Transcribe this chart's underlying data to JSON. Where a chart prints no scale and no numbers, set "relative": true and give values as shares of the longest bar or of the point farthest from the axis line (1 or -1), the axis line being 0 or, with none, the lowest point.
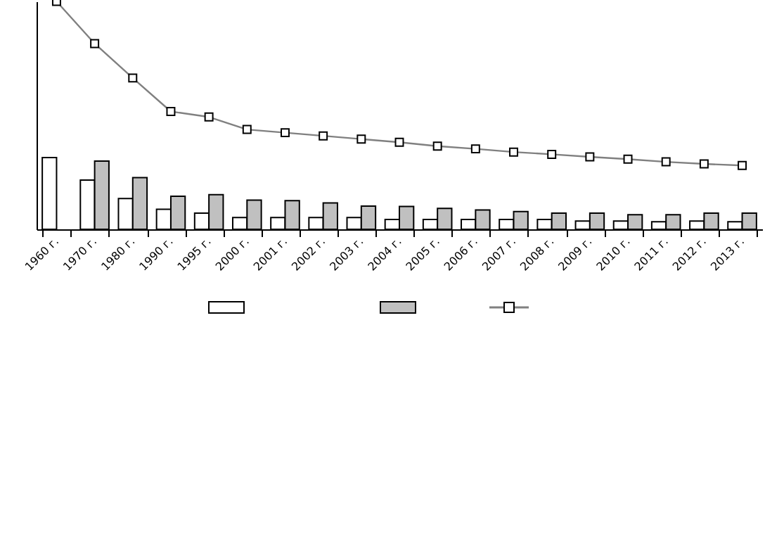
{
  "chart_data": {
    "type": "bar",
    "relative": true,
    "marker": "square",
    "line_style": "solid",
    "categories": [
      "1960 г.",
      "1970 г.",
      "1980 г.",
      "1990 г.",
      "1995 г.",
      "2000 г.",
      "2001 г.",
      "2002 г.",
      "2003 г.",
      "2004 г.",
      "2005 г.",
      "2006 г.",
      "2007 г.",
      "2008 г.",
      "2009 г.",
      "2010 г.",
      "2011 г.",
      "2012 г.",
      "2013 г."
    ],
    "series": [
      {
        "color": "#ffffff",
        "values": [
          0.315,
          0.216,
          0.135,
          0.088,
          0.071,
          0.052,
          0.052,
          0.052,
          0.052,
          0.043,
          0.043,
          0.043,
          0.043,
          0.043,
          0.036,
          0.036,
          0.033,
          0.036,
          0.033
        ]
      },
      {
        "color": "#c0c0c0",
        "values": [
          null,
          0.299,
          0.227,
          0.145,
          0.152,
          0.128,
          0.126,
          0.116,
          0.102,
          0.1,
          0.092,
          0.085,
          0.078,
          0.071,
          0.071,
          0.064,
          0.064,
          0.071,
          0.071
        ]
      },
      {
        "type": "line",
        "color": "#808080",
        "values": [
          1,
          0.815,
          0.664,
          0.517,
          0.493,
          0.438,
          0.424,
          0.41,
          0.396,
          0.382,
          0.365,
          0.353,
          0.339,
          0.329,
          0.318,
          0.308,
          0.296,
          0.287,
          0.28
        ]
      }
    ]
  }
}
